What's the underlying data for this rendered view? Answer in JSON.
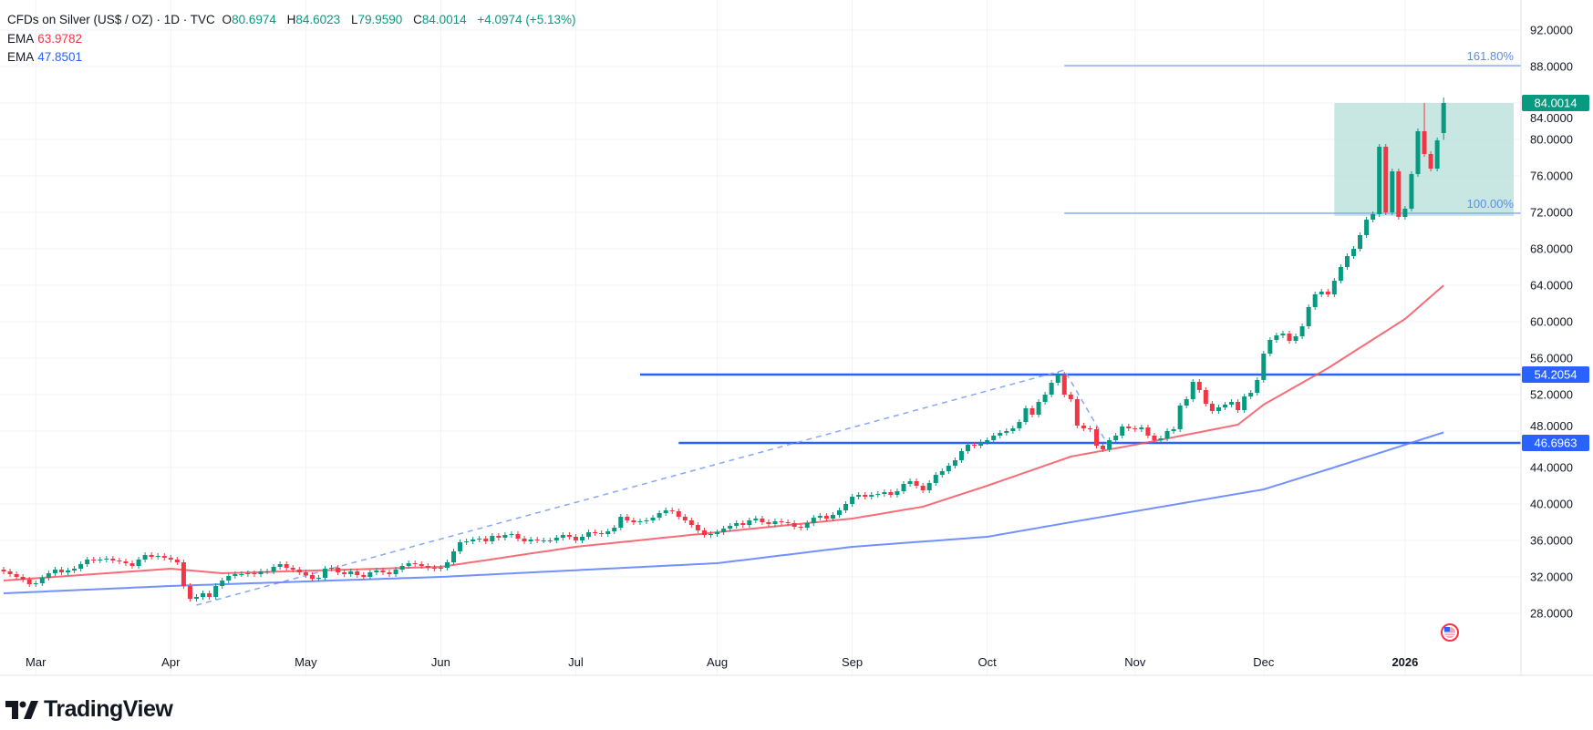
{
  "legend": {
    "symbol": "CFDs on Silver (US$ / OZ) · 1D · TVC",
    "open_label": "O",
    "open": "80.6974",
    "high_label": "H",
    "high": "84.6023",
    "low_label": "L",
    "low": "79.9590",
    "close_label": "C",
    "close": "84.0014",
    "change": "+4.0974 (+5.13%)",
    "ema1_label": "EMA",
    "ema1_value": "63.9782",
    "ema2_label": "EMA",
    "ema2_value": "47.8501"
  },
  "branding": {
    "name": "TradingView"
  },
  "colors": {
    "up": "#089981",
    "down": "#f23645",
    "ema1": "#f7525f",
    "ema2": "#5b7cff",
    "hline": "#2962ff",
    "fib": "#7aa0f0",
    "fib_zone": "#b2ddd5"
  },
  "chart_data": {
    "type": "candlestick",
    "title": "CFDs on Silver (US$ / OZ) · 1D · TVC",
    "ylim": [
      28,
      92
    ],
    "y_ticks": [
      "92.0000",
      "88.0000",
      "84.0000",
      "80.0000",
      "76.0000",
      "72.0000",
      "68.0000",
      "64.0000",
      "60.0000",
      "56.0000",
      "52.0000",
      "48.0000",
      "44.0000",
      "40.0000",
      "36.0000",
      "32.0000",
      "28.0000"
    ],
    "x_ticks": [
      {
        "label": "Mar",
        "bar": 5
      },
      {
        "label": "Apr",
        "bar": 26
      },
      {
        "label": "May",
        "bar": 47
      },
      {
        "label": "Jun",
        "bar": 68
      },
      {
        "label": "Jul",
        "bar": 89
      },
      {
        "label": "Aug",
        "bar": 111
      },
      {
        "label": "Sep",
        "bar": 132
      },
      {
        "label": "Oct",
        "bar": 153
      },
      {
        "label": "Nov",
        "bar": 176
      },
      {
        "label": "Dec",
        "bar": 196
      },
      {
        "label": "2026",
        "bar": 218,
        "bold": true
      }
    ],
    "first_date": "2025-02-24",
    "last_date": "2026-01-12",
    "closes": [
      32.6,
      32.3,
      32.0,
      31.7,
      31.2,
      31.3,
      31.9,
      32.4,
      32.8,
      32.5,
      32.7,
      32.9,
      33.4,
      33.9,
      33.8,
      33.9,
      34.0,
      33.8,
      33.7,
      33.5,
      33.2,
      33.9,
      34.4,
      34.2,
      34.3,
      34.1,
      33.9,
      33.6,
      31.0,
      29.6,
      29.8,
      30.2,
      29.8,
      31.0,
      31.6,
      32.1,
      32.3,
      32.3,
      32.4,
      32.3,
      32.6,
      32.6,
      33.1,
      33.4,
      33.0,
      32.8,
      32.5,
      32.2,
      31.8,
      31.9,
      32.9,
      33.0,
      32.5,
      32.3,
      32.6,
      32.2,
      32.0,
      32.5,
      32.7,
      32.5,
      32.3,
      32.8,
      33.2,
      33.5,
      33.4,
      33.2,
      33.0,
      32.9,
      33.0,
      33.6,
      34.8,
      35.8,
      35.9,
      36.1,
      36.2,
      35.9,
      36.5,
      36.3,
      36.6,
      36.7,
      36.2,
      35.9,
      36.1,
      36.0,
      36.0,
      36.0,
      36.3,
      36.6,
      36.4,
      36.0,
      36.4,
      36.9,
      36.8,
      36.7,
      37.0,
      37.4,
      38.6,
      38.2,
      38.0,
      38.1,
      38.2,
      38.5,
      39.0,
      39.3,
      39.2,
      38.6,
      38.2,
      37.7,
      37.1,
      36.6,
      36.7,
      36.9,
      37.3,
      37.6,
      37.9,
      37.7,
      38.2,
      38.4,
      38.0,
      37.8,
      38.1,
      38.0,
      37.9,
      37.5,
      37.4,
      37.9,
      38.5,
      38.7,
      38.4,
      38.8,
      39.3,
      40.0,
      40.8,
      41.0,
      40.8,
      41.0,
      41.1,
      41.3,
      41.0,
      41.4,
      42.2,
      42.5,
      42.0,
      41.5,
      42.3,
      43.2,
      43.6,
      44.2,
      44.8,
      45.8,
      46.5,
      46.4,
      46.8,
      47.0,
      47.5,
      47.8,
      48.0,
      48.3,
      49.0,
      50.5,
      49.8,
      51.2,
      52.0,
      53.3,
      54.2,
      52.0,
      51.5,
      48.6,
      48.3,
      48.2,
      46.4,
      46.0,
      47.0,
      47.5,
      48.5,
      48.3,
      48.2,
      48.4,
      47.5,
      47.0,
      47.2,
      48.0,
      48.2,
      50.8,
      51.5,
      53.4,
      52.5,
      51.0,
      50.2,
      50.6,
      50.9,
      51.2,
      50.3,
      51.8,
      52.2,
      53.6,
      56.5,
      58.0,
      58.5,
      58.7,
      57.9,
      58.4,
      59.5,
      61.6,
      63.0,
      63.3,
      63.0,
      64.5,
      66.0,
      67.2,
      68.0,
      69.5,
      71.2,
      71.8,
      79.2,
      72.0,
      76.5,
      71.5,
      72.4,
      76.2,
      80.9,
      78.4,
      76.8,
      79.9,
      84.0014
    ],
    "last_candle": {
      "open": 80.6974,
      "high": 84.6023,
      "low": 79.959,
      "close": 84.0014
    },
    "ema_fast": {
      "name": "EMA",
      "last": 63.9782,
      "points": [
        [
          0,
          31.6
        ],
        [
          26,
          32.9
        ],
        [
          34,
          32.4
        ],
        [
          68,
          33.1
        ],
        [
          89,
          35.3
        ],
        [
          111,
          36.9
        ],
        [
          132,
          38.4
        ],
        [
          143,
          39.7
        ],
        [
          153,
          42.0
        ],
        [
          166,
          45.2
        ],
        [
          176,
          46.5
        ],
        [
          192,
          48.7
        ],
        [
          196,
          50.9
        ],
        [
          206,
          54.9
        ],
        [
          218,
          60.3
        ],
        [
          224,
          63.9782
        ]
      ]
    },
    "ema_slow": {
      "name": "EMA",
      "last": 47.8501,
      "points": [
        [
          0,
          30.2
        ],
        [
          26,
          31.0
        ],
        [
          68,
          32.0
        ],
        [
          111,
          33.5
        ],
        [
          132,
          35.3
        ],
        [
          153,
          36.4
        ],
        [
          166,
          38.0
        ],
        [
          176,
          39.2
        ],
        [
          196,
          41.6
        ],
        [
          206,
          43.8
        ],
        [
          218,
          46.5
        ],
        [
          224,
          47.8501
        ]
      ]
    },
    "horizontal_lines": [
      {
        "price": 54.2054,
        "label": "54.2054",
        "from_bar": 99
      },
      {
        "price": 46.6963,
        "label": "46.6963",
        "from_bar": 105
      }
    ],
    "trend_line": {
      "points": [
        [
          30,
          28.9
        ],
        [
          165,
          54.7
        ],
        [
          172,
          46.2
        ]
      ],
      "style": "dashed"
    },
    "fibonacci": {
      "levels": [
        {
          "level": "161.80%",
          "price": 88.1
        },
        {
          "level": "100.00%",
          "price": 71.9
        }
      ],
      "from_bar": 165,
      "zone": {
        "from_bar": 207,
        "to_bar": 235,
        "top": 84.0,
        "bottom": 71.6
      }
    },
    "last_price_label": "84.0014"
  }
}
